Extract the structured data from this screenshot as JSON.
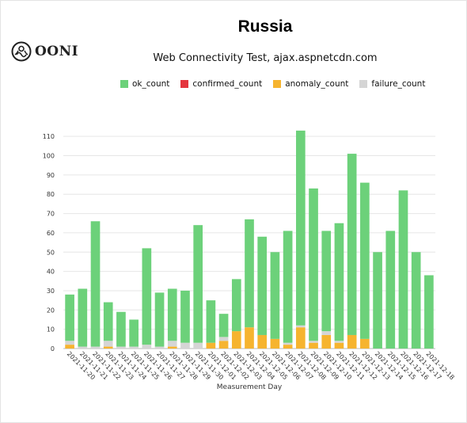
{
  "brand": {
    "name": "OONI",
    "icon": "ooni-logo-icon"
  },
  "chart_data": {
    "type": "bar",
    "stacked": true,
    "title": "Russia",
    "subtitle": "Web Connectivity Test, ajax.aspnetcdn.com",
    "xlabel": "Measurement Day",
    "ylabel": "",
    "ylim": [
      0,
      115
    ],
    "yticks": [
      0,
      10,
      20,
      30,
      40,
      50,
      60,
      70,
      80,
      90,
      100,
      110
    ],
    "grid": true,
    "legend_position": "top",
    "categories": [
      "2021-11-20",
      "2021-11-21",
      "2021-11-22",
      "2021-11-23",
      "2021-11-24",
      "2021-11-25",
      "2021-11-26",
      "2021-11-27",
      "2021-11-28",
      "2021-11-29",
      "2021-11-30",
      "2021-12-01",
      "2021-12-02",
      "2021-12-03",
      "2021-12-04",
      "2021-12-05",
      "2021-12-06",
      "2021-12-07",
      "2021-12-08",
      "2021-12-09",
      "2021-12-10",
      "2021-12-11",
      "2021-12-12",
      "2021-12-13",
      "2021-12-14",
      "2021-12-15",
      "2021-12-16",
      "2021-12-17",
      "2021-12-18"
    ],
    "series": [
      {
        "name": "anomaly_count",
        "color": "#f6b42f",
        "values": [
          2,
          0,
          0,
          1,
          0,
          0,
          0,
          0,
          1,
          0,
          0,
          3,
          4,
          9,
          11,
          7,
          5,
          2,
          11,
          3,
          7,
          3,
          7,
          5,
          0,
          0,
          0,
          0,
          0
        ]
      },
      {
        "name": "confirmed_count",
        "color": "#e4353e",
        "values": [
          0,
          0,
          0,
          0,
          0,
          0,
          0,
          0,
          0,
          0,
          0,
          0,
          0,
          0,
          0,
          0,
          0,
          0,
          0,
          0,
          0,
          0,
          0,
          0,
          0,
          0,
          0,
          0,
          0
        ]
      },
      {
        "name": "failure_count",
        "color": "#d5d5d5",
        "values": [
          2,
          1,
          1,
          3,
          1,
          1,
          2,
          1,
          3,
          3,
          3,
          0,
          2,
          0,
          0,
          0,
          0,
          1,
          1,
          1,
          2,
          1,
          0,
          0,
          0,
          0,
          0,
          0,
          0
        ]
      },
      {
        "name": "ok_count",
        "color": "#6cd17a",
        "values": [
          24,
          30,
          65,
          20,
          18,
          14,
          50,
          28,
          27,
          27,
          61,
          22,
          12,
          27,
          56,
          51,
          45,
          58,
          101,
          79,
          52,
          61,
          94,
          81,
          50,
          61,
          82,
          50,
          38
        ]
      }
    ],
    "legend_order": [
      "ok_count",
      "confirmed_count",
      "anomaly_count",
      "failure_count"
    ]
  }
}
